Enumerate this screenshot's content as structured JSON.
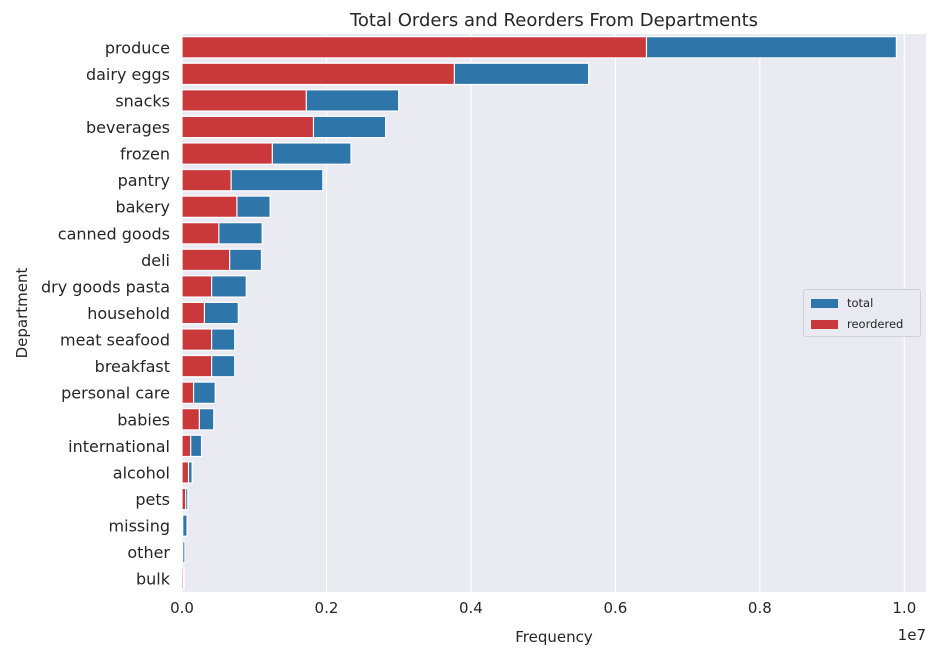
{
  "chart_data": {
    "type": "bar",
    "orientation": "horizontal",
    "title": "Total Orders and Reorders From Departments",
    "xlabel": "Frequency",
    "ylabel": "Department",
    "x_scale_label": "1e7",
    "xlim": [
      0,
      1.03
    ],
    "x_ticks": [
      "0.0",
      "0.2",
      "0.4",
      "0.6",
      "0.8",
      "1.0"
    ],
    "grid": true,
    "legend_position": "center-right",
    "categories": [
      "produce",
      "dairy eggs",
      "snacks",
      "beverages",
      "frozen",
      "pantry",
      "bakery",
      "canned goods",
      "deli",
      "dry goods pasta",
      "household",
      "meat seafood",
      "breakfast",
      "personal care",
      "babies",
      "international",
      "alcohol",
      "pets",
      "missing",
      "other",
      "bulk"
    ],
    "series": [
      {
        "name": "total",
        "color": "#2e75aa",
        "values": [
          0.989,
          0.563,
          0.3,
          0.282,
          0.234,
          0.195,
          0.122,
          0.111,
          0.11,
          0.089,
          0.078,
          0.073,
          0.073,
          0.046,
          0.044,
          0.027,
          0.014,
          0.008,
          0.007,
          0.004,
          0.003
        ]
      },
      {
        "name": "reordered",
        "color": "#c9383a",
        "values": [
          0.643,
          0.377,
          0.172,
          0.182,
          0.125,
          0.068,
          0.076,
          0.051,
          0.066,
          0.041,
          0.031,
          0.041,
          0.041,
          0.016,
          0.024,
          0.012,
          0.009,
          0.005,
          0.001,
          0.001,
          0.002
        ]
      }
    ]
  }
}
